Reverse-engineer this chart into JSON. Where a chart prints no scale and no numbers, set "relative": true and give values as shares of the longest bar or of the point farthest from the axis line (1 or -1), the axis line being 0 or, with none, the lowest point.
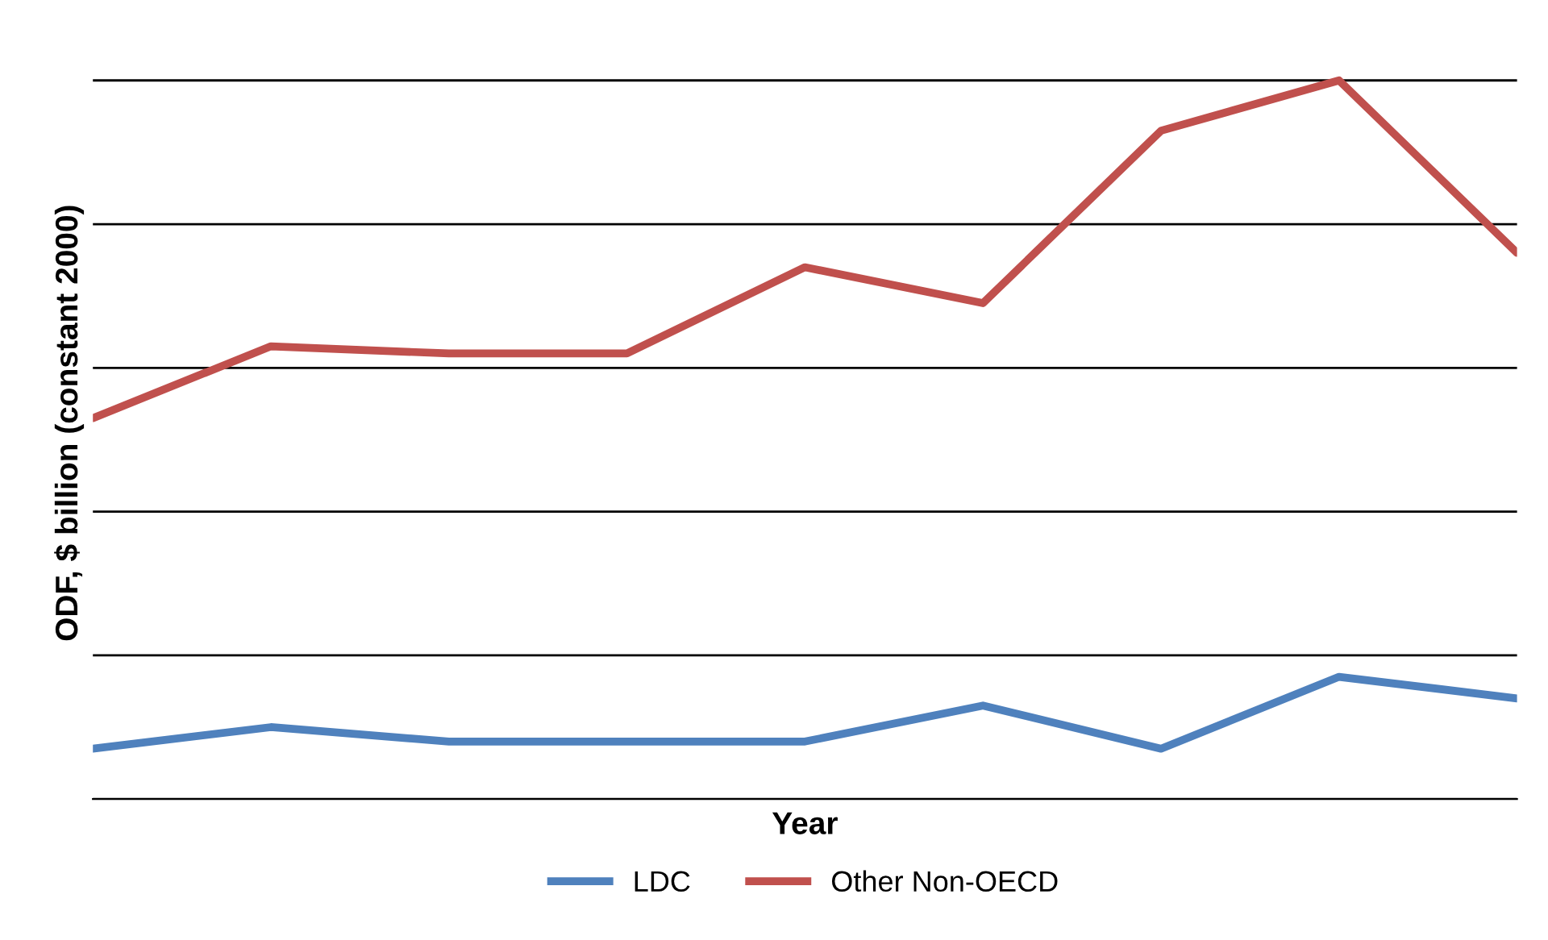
{
  "chart_data": {
    "type": "line",
    "relative": true,
    "xlabel": "Year",
    "ylabel": "ODF, $ billion (constant 2000)",
    "categories": [
      null,
      null,
      null,
      null,
      null,
      null,
      null,
      null,
      null
    ],
    "series": [
      {
        "name": "LDC",
        "color": "#4f81bd",
        "values": [
          0.07,
          0.1,
          0.08,
          0.08,
          0.08,
          0.13,
          0.07,
          0.17,
          0.14
        ]
      },
      {
        "name": "Other Non-OECD",
        "color": "#c0504d",
        "values": [
          0.53,
          0.63,
          0.62,
          0.62,
          0.74,
          0.69,
          0.93,
          1.0,
          0.76
        ]
      }
    ],
    "grid": "y",
    "legend": "bottom",
    "marker": "none",
    "line_style": "solid"
  }
}
